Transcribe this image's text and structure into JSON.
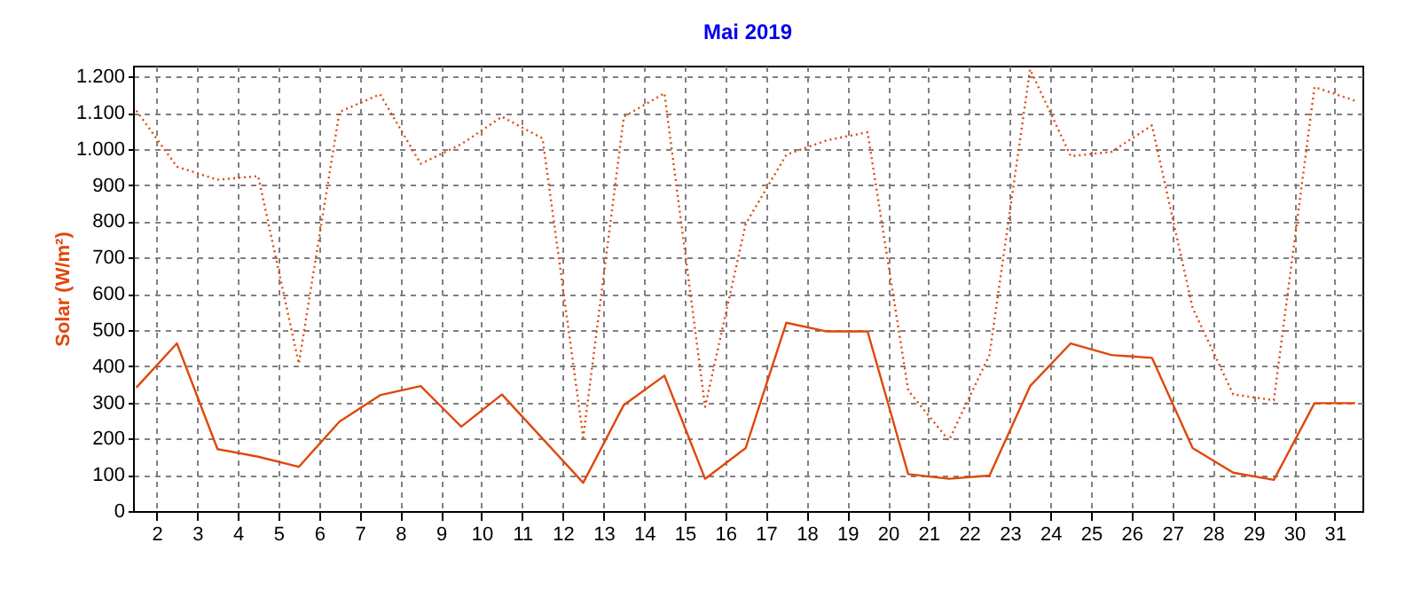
{
  "chart_data": {
    "type": "line",
    "title": "Mai 2019",
    "ylabel": "Solar  (W/m²)",
    "x": [
      1.5,
      2.5,
      3.5,
      4.5,
      5.5,
      6.5,
      7.5,
      8.5,
      9.5,
      10.5,
      11.5,
      12.5,
      13.5,
      14.5,
      15.5,
      16.5,
      17.5,
      18.5,
      19.5,
      20.5,
      21.5,
      22.5,
      23.5,
      24.5,
      25.5,
      26.5,
      27.5,
      28.5,
      29.5,
      30.5,
      31.5
    ],
    "series": [
      {
        "color": "#e0470a",
        "line_style": "solid",
        "values": [
          341,
          463,
          171,
          150,
          122,
          247,
          320,
          345,
          233,
          322,
          200,
          78,
          293,
          374,
          89,
          174,
          520,
          496,
          496,
          102,
          89,
          98,
          345,
          463,
          431,
          423,
          174,
          106,
          86,
          298,
          298
        ]
      },
      {
        "color": "#e0470a",
        "line_style": "dotted",
        "values": [
          1106,
          951,
          915,
          925,
          407,
          1102,
          1151,
          959,
          1013,
          1089,
          1029,
          203,
          1089,
          1154,
          288,
          793,
          984,
          1024,
          1046,
          333,
          195,
          431,
          1220,
          980,
          992,
          1065,
          561,
          322,
          306,
          1171,
          1133
        ]
      }
    ],
    "xlim": [
      1.42,
      31.68
    ],
    "ylim": [
      0,
      1230
    ],
    "xticks": [
      2,
      3,
      4,
      5,
      6,
      7,
      8,
      9,
      10,
      11,
      12,
      13,
      14,
      15,
      16,
      17,
      18,
      19,
      20,
      21,
      22,
      23,
      24,
      25,
      26,
      27,
      28,
      29,
      30,
      31
    ],
    "yticks": [
      0,
      100,
      200,
      300,
      400,
      500,
      600,
      700,
      800,
      900,
      {
        "value": 1000,
        "label": "1.000"
      },
      {
        "value": 1100,
        "label": "1.100"
      },
      {
        "value": 1200,
        "label": "1.200"
      }
    ],
    "grid": true,
    "marker": "none"
  }
}
